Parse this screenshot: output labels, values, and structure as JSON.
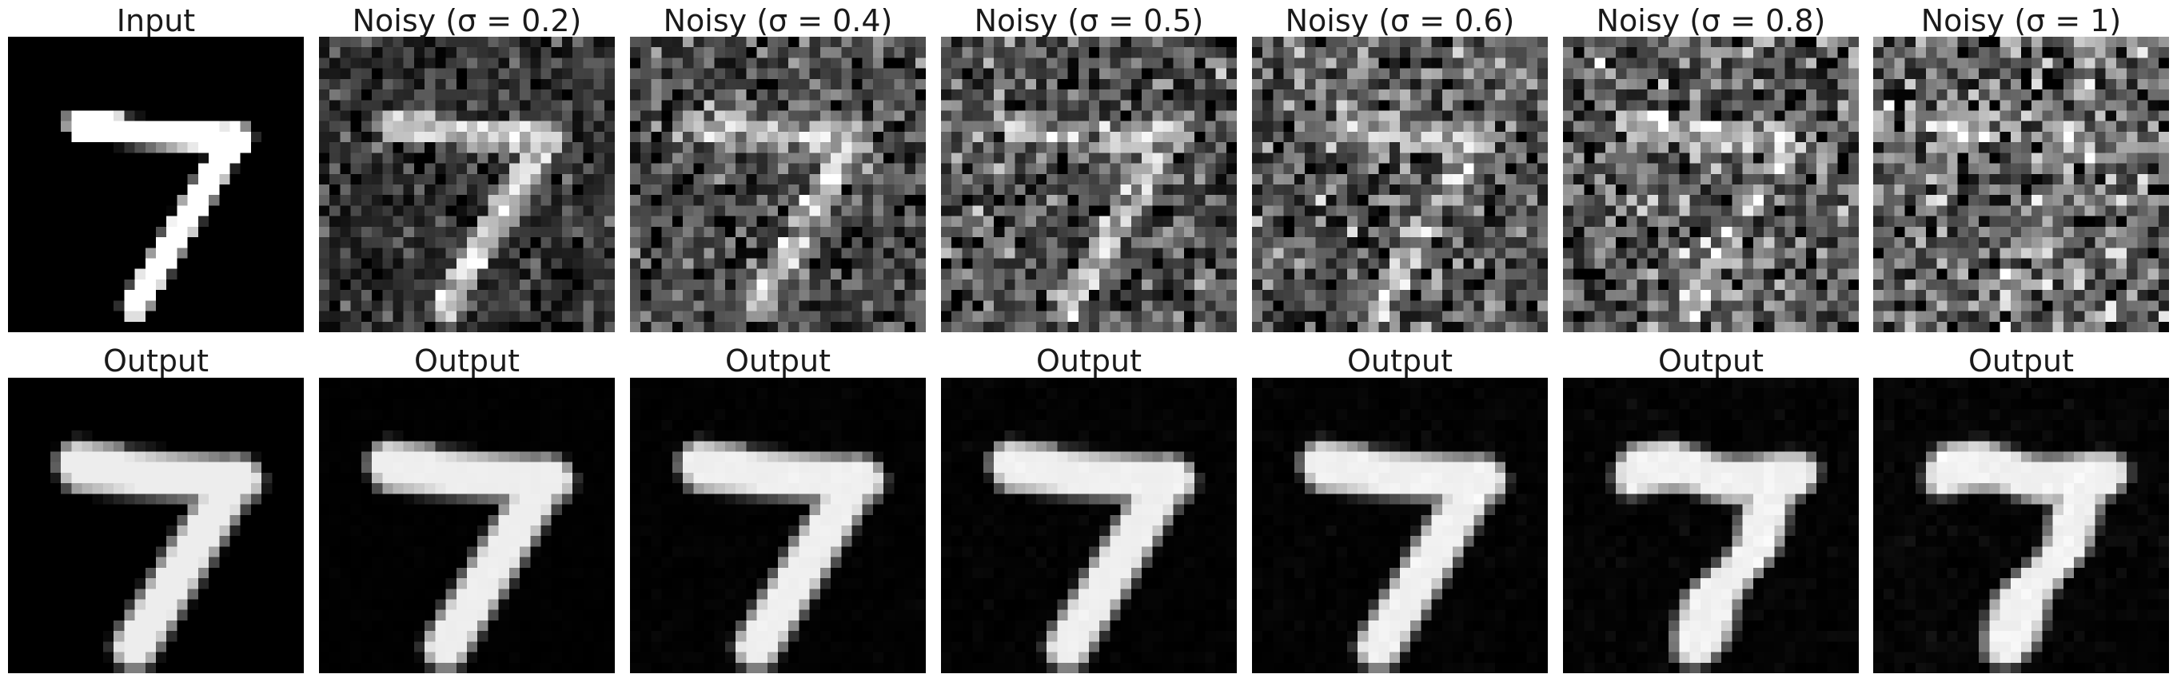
{
  "figure": {
    "top_row": [
      {
        "title": "Input",
        "sigma": 0
      },
      {
        "title": "Noisy (σ = 0.2)",
        "sigma": 0.2
      },
      {
        "title": "Noisy (σ = 0.4)",
        "sigma": 0.4
      },
      {
        "title": "Noisy (σ = 0.5)",
        "sigma": 0.5
      },
      {
        "title": "Noisy (σ = 0.6)",
        "sigma": 0.6
      },
      {
        "title": "Noisy (σ = 0.8)",
        "sigma": 0.8
      },
      {
        "title": "Noisy (σ = 1)",
        "sigma": 1
      }
    ],
    "bottom_row": [
      {
        "title": "Output",
        "sigma": 0
      },
      {
        "title": "Output",
        "sigma": 0.2
      },
      {
        "title": "Output",
        "sigma": 0.4
      },
      {
        "title": "Output",
        "sigma": 0.5
      },
      {
        "title": "Output",
        "sigma": 0.6
      },
      {
        "title": "Output",
        "sigma": 0.8
      },
      {
        "title": "Output",
        "sigma": 1
      }
    ],
    "image_kind": "28x28 grayscale digit 7",
    "colormap": "grayscale"
  }
}
